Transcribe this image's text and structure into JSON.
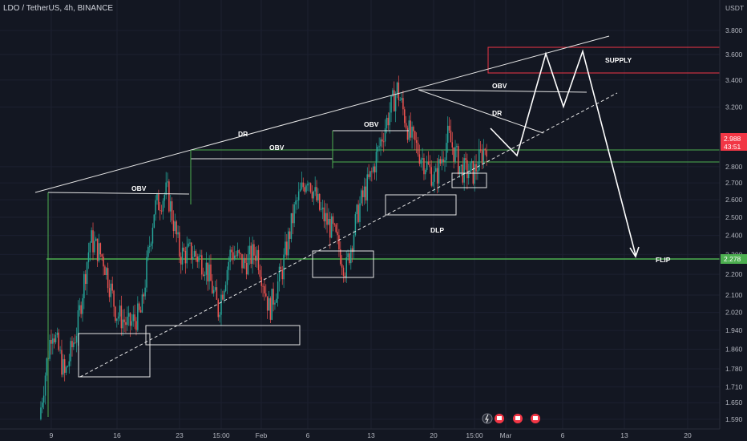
{
  "header": {
    "title": "LDO / TetherUS, 4h, BINANCE"
  },
  "colors": {
    "background": "#131722",
    "up": "#26a69a",
    "down": "#ef5350",
    "green_line": "#4caf50",
    "supply": "#f23645",
    "white": "#ffffff"
  },
  "chart_data": {
    "type": "candlestick",
    "title": "LDO / TetherUS, 4h, BINANCE",
    "y_unit": "USDT",
    "x_ticks": [
      "9",
      "16",
      "23",
      "15:00",
      "Feb",
      "6",
      "13",
      "20",
      "15:00",
      "Mar",
      "6",
      "13",
      "20"
    ],
    "y_ticks": [
      "3.800",
      "3.600",
      "3.400",
      "3.200",
      "2.800",
      "2.700",
      "2.600",
      "2.500",
      "2.400",
      "2.300",
      "2.200",
      "2.100",
      "2.020",
      "1.940",
      "1.860",
      "1.780",
      "1.710",
      "1.650",
      "1.590"
    ],
    "ylim": [
      1.59,
      3.8
    ],
    "y_scale": "log",
    "current_price": "2.988",
    "countdown": "43:51",
    "flip_level": "2.278",
    "key_levels": [
      2.92,
      2.82,
      2.278
    ],
    "approx_closes": [
      1.59,
      1.96,
      1.75,
      1.96,
      2.38,
      2.28,
      2.02,
      1.96,
      2.02,
      2.55,
      2.65,
      2.3,
      2.31,
      2.25,
      2.03,
      2.32,
      2.25,
      2.32,
      2.03,
      2.22,
      2.55,
      2.75,
      2.53,
      2.42,
      2.22,
      2.55,
      2.75,
      3.05,
      3.33,
      3.0,
      2.85,
      2.72,
      3.0,
      2.78,
      2.76,
      2.95
    ],
    "annotations": {
      "dr_main": "DR",
      "obv_left": "OBV",
      "obv_mid": "OBV",
      "obv_right": "OBV",
      "obv_top": "OBV",
      "dr_top": "DR",
      "dlp": "DLP",
      "supply": "SUPPLY",
      "flip": "FLIP"
    },
    "projection": [
      2.95,
      2.88,
      3.62,
      3.2,
      3.65,
      2.27
    ]
  }
}
